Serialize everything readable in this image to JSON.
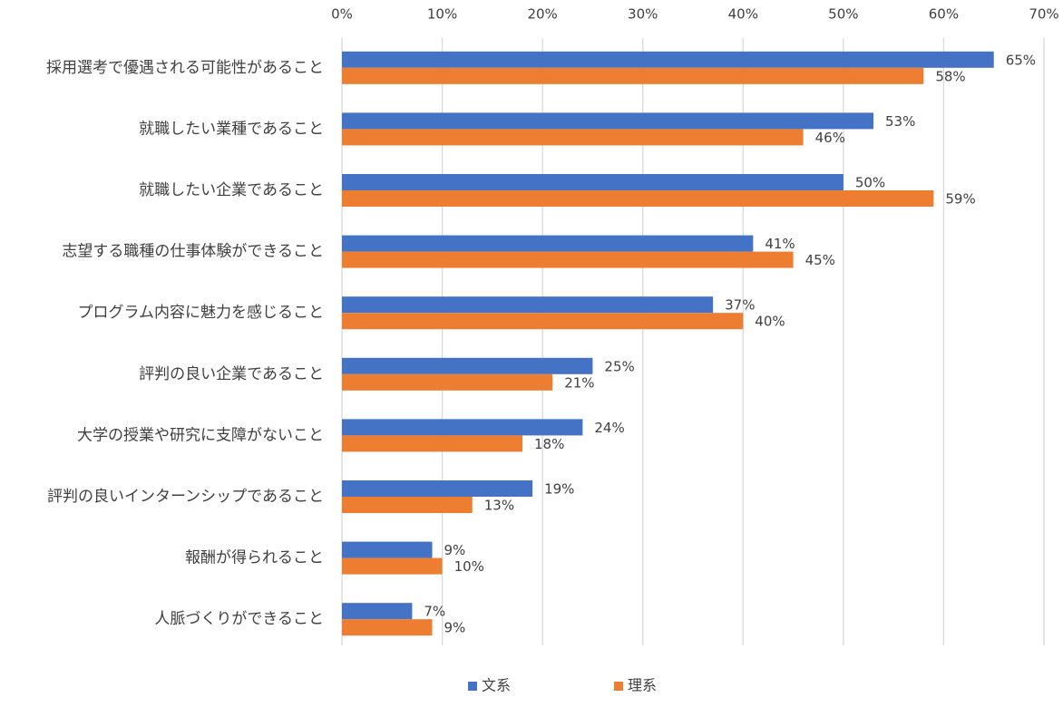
{
  "chart_data": {
    "type": "bar",
    "orientation": "horizontal",
    "categories": [
      "採用選考で優遇される可能性があること",
      "就職したい業種であること",
      "就職したい企業であること",
      "志望する職種の仕事体験ができること",
      "プログラム内容に魅力を感じること",
      "評判の良い企業であること",
      "大学の授業や研究に支障がないこと",
      "評判の良いインターンシップであること",
      "報酬が得られること",
      "人脈づくりができること"
    ],
    "series": [
      {
        "name": "文系",
        "color": "#4472c4",
        "values": [
          65,
          53,
          50,
          41,
          37,
          25,
          24,
          19,
          9,
          7
        ],
        "value_labels": [
          "65%",
          "53%",
          "50%",
          "41%",
          "37%",
          "25%",
          "24%",
          "19%",
          "9%",
          "7%"
        ]
      },
      {
        "name": "理系",
        "color": "#ed7d31",
        "values": [
          58,
          46,
          59,
          45,
          40,
          21,
          18,
          13,
          10,
          9
        ],
        "value_labels": [
          "58%",
          "46%",
          "59%",
          "45%",
          "40%",
          "21%",
          "18%",
          "13%",
          "10%",
          "9%"
        ]
      }
    ],
    "xlim": [
      0,
      70
    ],
    "xticks": [
      {
        "value": 0,
        "label": "0%"
      },
      {
        "value": 10,
        "label": "10%"
      },
      {
        "value": 20,
        "label": "20%"
      },
      {
        "value": 30,
        "label": "30%"
      },
      {
        "value": 40,
        "label": "40%"
      },
      {
        "value": 50,
        "label": "50%"
      },
      {
        "value": 60,
        "label": "60%"
      },
      {
        "value": 70,
        "label": "70%"
      }
    ],
    "grid": true,
    "legend": "bottom"
  }
}
